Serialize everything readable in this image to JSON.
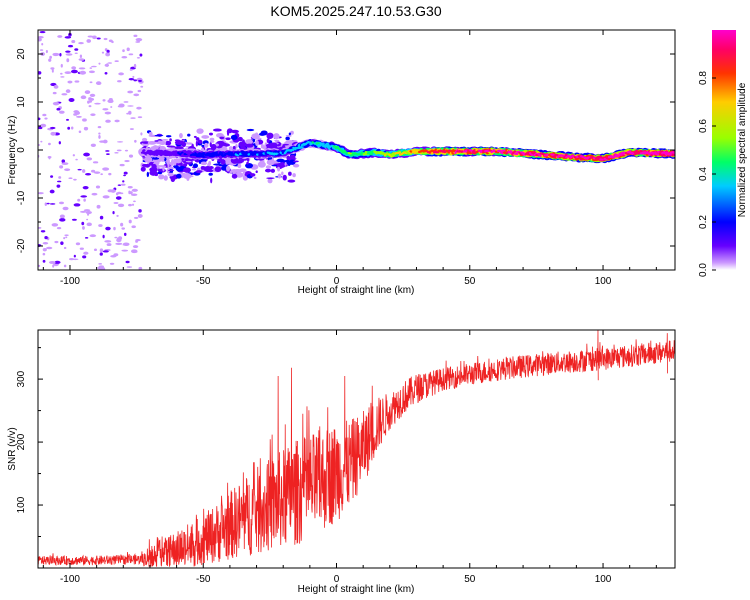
{
  "chart_data": [
    {
      "type": "heatmap",
      "title": "KOM5.2025.247.10.53.G30",
      "xlabel": "Height of straight line (km)",
      "ylabel": "Frequency (Hz)",
      "xlim": [
        -112,
        127
      ],
      "ylim": [
        -25,
        25
      ],
      "xticks": [
        -100,
        -50,
        0,
        50,
        100
      ],
      "yticks": [
        -20,
        -10,
        0,
        10,
        20
      ],
      "xtick_labels": [
        "-100",
        "-50",
        "0",
        "50",
        "100"
      ],
      "ytick_labels": [
        "-20",
        "-10",
        "0",
        "10",
        "20"
      ],
      "colorbar": {
        "label": "Normalized spectral amplitude",
        "range": [
          0,
          1
        ],
        "ticks": [
          0.0,
          0.2,
          0.4,
          0.6,
          0.8
        ],
        "tick_labels": [
          "0.0",
          "0.2",
          "0.4",
          "0.6",
          "0.8"
        ],
        "colormap": [
          "#cc99ff",
          "#6600ff",
          "#0000ff",
          "#00ccff",
          "#00ff66",
          "#99ff00",
          "#ffcc00",
          "#ff3300",
          "#ff0066",
          "#ff00cc"
        ]
      },
      "ridge_track": [
        {
          "x": -70,
          "y": -0.5
        },
        {
          "x": -50,
          "y": -1.0
        },
        {
          "x": -30,
          "y": -0.8
        },
        {
          "x": -20,
          "y": -0.6
        },
        {
          "x": -10,
          "y": 1.5
        },
        {
          "x": 0,
          "y": 0.5
        },
        {
          "x": 5,
          "y": -1.0
        },
        {
          "x": 15,
          "y": -0.5
        },
        {
          "x": 20,
          "y": -1.0
        },
        {
          "x": 30,
          "y": -0.3
        },
        {
          "x": 60,
          "y": -0.3
        },
        {
          "x": 90,
          "y": -1.5
        },
        {
          "x": 100,
          "y": -1.8
        },
        {
          "x": 110,
          "y": -0.5
        },
        {
          "x": 127,
          "y": -0.8
        }
      ],
      "ridge_amplitude": [
        {
          "x": -112,
          "amp": 0.05
        },
        {
          "x": -72,
          "amp": 0.12
        },
        {
          "x": -60,
          "amp": 0.2
        },
        {
          "x": -50,
          "amp": 0.25
        },
        {
          "x": -30,
          "amp": 0.3
        },
        {
          "x": -15,
          "amp": 0.35
        },
        {
          "x": 0,
          "amp": 0.4
        },
        {
          "x": 20,
          "amp": 0.6
        },
        {
          "x": 40,
          "amp": 0.85
        },
        {
          "x": 70,
          "amp": 0.92
        },
        {
          "x": 90,
          "amp": 0.95
        },
        {
          "x": 127,
          "amp": 0.97
        }
      ],
      "scatter_regions": [
        {
          "x_range": [
            -112,
            -73
          ],
          "y_range": [
            -25,
            25
          ],
          "amp_range": [
            0.0,
            0.15
          ]
        },
        {
          "x_range": [
            -73,
            -15
          ],
          "y_range": [
            -8,
            6
          ],
          "amp_range": [
            0.05,
            0.25
          ]
        }
      ]
    },
    {
      "type": "line",
      "title": "",
      "xlabel": "Height of straight line (km)",
      "ylabel": "SNR (v/v)",
      "xlim": [
        -112,
        127
      ],
      "ylim": [
        0,
        378
      ],
      "xticks": [
        -100,
        -50,
        0,
        50,
        100
      ],
      "yticks": [
        100,
        200,
        300
      ],
      "xtick_labels": [
        "-100",
        "-50",
        "0",
        "50",
        "100"
      ],
      "ytick_labels": [
        "100",
        "200",
        "300"
      ],
      "color": "#ee2222",
      "series": [
        {
          "name": "SNR",
          "baseline": [
            {
              "x": -112,
              "y": 12
            },
            {
              "x": -90,
              "y": 12
            },
            {
              "x": -72,
              "y": 14
            },
            {
              "x": -65,
              "y": 22
            },
            {
              "x": -55,
              "y": 35
            },
            {
              "x": -45,
              "y": 55
            },
            {
              "x": -35,
              "y": 80
            },
            {
              "x": -25,
              "y": 100
            },
            {
              "x": -15,
              "y": 120
            },
            {
              "x": -5,
              "y": 140
            },
            {
              "x": 5,
              "y": 165
            },
            {
              "x": 10,
              "y": 190
            },
            {
              "x": 15,
              "y": 225
            },
            {
              "x": 20,
              "y": 250
            },
            {
              "x": 25,
              "y": 270
            },
            {
              "x": 30,
              "y": 285
            },
            {
              "x": 40,
              "y": 300
            },
            {
              "x": 60,
              "y": 315
            },
            {
              "x": 80,
              "y": 325
            },
            {
              "x": 100,
              "y": 332
            },
            {
              "x": 127,
              "y": 345
            }
          ],
          "noise": [
            {
              "x": -112,
              "amp": 7
            },
            {
              "x": -73,
              "amp": 8
            },
            {
              "x": -70,
              "amp": 20
            },
            {
              "x": -50,
              "amp": 40
            },
            {
              "x": -30,
              "amp": 70
            },
            {
              "x": -15,
              "amp": 85
            },
            {
              "x": 0,
              "amp": 80
            },
            {
              "x": 12,
              "amp": 55
            },
            {
              "x": 20,
              "amp": 30
            },
            {
              "x": 40,
              "amp": 18
            },
            {
              "x": 127,
              "amp": 18
            }
          ],
          "peaks": [
            {
              "x": -17,
              "y": 318
            },
            {
              "x": -22,
              "y": 305
            },
            {
              "x": 3,
              "y": 305
            },
            {
              "x": 98,
              "y": 378
            },
            {
              "x": 124,
              "y": 373
            }
          ]
        }
      ]
    }
  ]
}
